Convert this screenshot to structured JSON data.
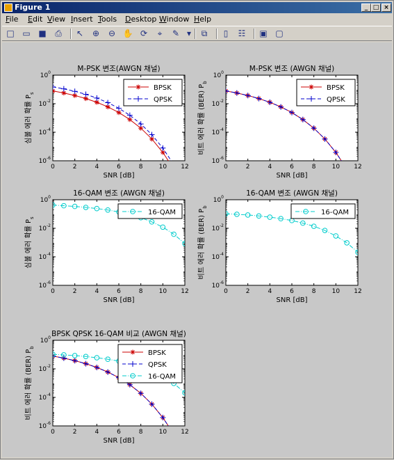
{
  "window": {
    "title": "Figure 1"
  },
  "menu": [
    "File",
    "Edit",
    "View",
    "Insert",
    "Tools",
    "Desktop",
    "Window",
    "Help"
  ],
  "toolbar": [
    {
      "name": "new-figure-icon",
      "glyph": "□"
    },
    {
      "name": "open-file-icon",
      "glyph": "▭"
    },
    {
      "name": "save-icon",
      "glyph": "■"
    },
    {
      "name": "print-icon",
      "glyph": "⎙"
    },
    {
      "sep": true
    },
    {
      "name": "edit-plot-arrow-icon",
      "glyph": "↖"
    },
    {
      "name": "zoom-in-icon",
      "glyph": "⊕"
    },
    {
      "name": "zoom-out-icon",
      "glyph": "⊖"
    },
    {
      "name": "pan-hand-icon",
      "glyph": "✋"
    },
    {
      "name": "rotate-3d-icon",
      "glyph": "⟳"
    },
    {
      "name": "data-cursor-icon",
      "glyph": "⌖"
    },
    {
      "name": "brush-icon",
      "glyph": "✎"
    },
    {
      "name": "brush-dropdown-icon",
      "glyph": "▾"
    },
    {
      "sep": true
    },
    {
      "name": "link-plot-icon",
      "glyph": "⧉"
    },
    {
      "sep": true
    },
    {
      "name": "insert-colorbar-icon",
      "glyph": "▯"
    },
    {
      "name": "insert-legend-icon",
      "glyph": "☷"
    },
    {
      "sep": true
    },
    {
      "name": "hide-plot-tools-icon",
      "glyph": "▣"
    },
    {
      "name": "show-plot-tools-icon",
      "glyph": "▢"
    }
  ],
  "chart_data": [
    {
      "type": "line",
      "title": "M-PSK 변조(AWGN 채널)",
      "xlabel": "SNR [dB]",
      "ylabel": "심볼 에러 확률 P",
      "ylabel_sub": "s",
      "xlim": [
        0,
        12
      ],
      "xticks": [
        0,
        2,
        4,
        6,
        8,
        10,
        12
      ],
      "ylog": true,
      "ylim_exp": [
        -6,
        0
      ],
      "yticks_exp": [
        0,
        -2,
        -4,
        -6
      ],
      "legend": "top-right",
      "series": [
        {
          "name": "BPSK",
          "color": "#cc0000",
          "style": "solid",
          "marker": "star",
          "x": [
            0,
            1,
            2,
            3,
            4,
            5,
            6,
            7,
            8,
            9,
            10,
            11
          ],
          "y": [
            0.0786,
            0.0563,
            0.0375,
            0.0229,
            0.0125,
            0.00595,
            0.00239,
            0.000773,
            0.000191,
            3.36e-05,
            3.87e-06,
            2.6e-07
          ]
        },
        {
          "name": "QPSK",
          "color": "#0000cc",
          "style": "dash",
          "marker": "plus",
          "x": [
            0,
            1,
            2,
            3,
            4,
            5,
            6,
            7,
            8,
            9,
            10,
            11
          ],
          "y": [
            0.151,
            0.11,
            0.0736,
            0.0453,
            0.0248,
            0.0119,
            0.00477,
            0.00155,
            0.000382,
            6.72e-05,
            7.74e-06,
            5.2e-07
          ]
        }
      ]
    },
    {
      "type": "line",
      "title": "M-PSK 변조 (AWGN 채널)",
      "xlabel": "SNR [dB]",
      "ylabel": "비트 에러 확률 (BER) P",
      "ylabel_sub": "b",
      "xlim": [
        0,
        12
      ],
      "xticks": [
        0,
        2,
        4,
        6,
        8,
        10,
        12
      ],
      "ylog": true,
      "ylim_exp": [
        -6,
        0
      ],
      "yticks_exp": [
        0,
        -2,
        -4,
        -6
      ],
      "legend": "top-right",
      "series": [
        {
          "name": "BPSK",
          "color": "#cc0000",
          "style": "solid",
          "marker": "star",
          "x": [
            0,
            1,
            2,
            3,
            4,
            5,
            6,
            7,
            8,
            9,
            10,
            11
          ],
          "y": [
            0.0786,
            0.0563,
            0.0375,
            0.0229,
            0.0125,
            0.00595,
            0.00239,
            0.000773,
            0.000191,
            3.36e-05,
            3.87e-06,
            2.6e-07
          ]
        },
        {
          "name": "QPSK",
          "color": "#0000cc",
          "style": "dash",
          "marker": "plus",
          "x": [
            0,
            1,
            2,
            3,
            4,
            5,
            6,
            7,
            8,
            9,
            10,
            11
          ],
          "y": [
            0.0786,
            0.0563,
            0.0375,
            0.0229,
            0.0125,
            0.00595,
            0.00239,
            0.000773,
            0.000191,
            3.36e-05,
            3.87e-06,
            2.6e-07
          ]
        }
      ]
    },
    {
      "type": "line",
      "title": "16-QAM 변조 (AWGN 채널)",
      "xlabel": "SNR [dB]",
      "ylabel": "심볼 에러 확률 P",
      "ylabel_sub": "s",
      "xlim": [
        0,
        12
      ],
      "xticks": [
        0,
        2,
        4,
        6,
        8,
        10,
        12
      ],
      "ylog": true,
      "ylim_exp": [
        -6,
        0
      ],
      "yticks_exp": [
        0,
        -2,
        -4,
        -6
      ],
      "legend": "top-right",
      "series": [
        {
          "name": "16-QAM",
          "color": "#00cccc",
          "style": "dashdot",
          "marker": "circle",
          "x": [
            0,
            1,
            2,
            3,
            4,
            5,
            6,
            7,
            8,
            9,
            10,
            11,
            12
          ],
          "y": [
            0.42,
            0.38,
            0.34,
            0.29,
            0.24,
            0.19,
            0.14,
            0.092,
            0.055,
            0.028,
            0.012,
            0.0038,
            0.00085
          ]
        }
      ]
    },
    {
      "type": "line",
      "title": "16-QAM 변조 (AWGN 채널)",
      "xlabel": "SNR [dB]",
      "ylabel": "비트 에러 확률 (BER) P",
      "ylabel_sub": "b",
      "xlim": [
        0,
        12
      ],
      "xticks": [
        0,
        2,
        4,
        6,
        8,
        10,
        12
      ],
      "ylog": true,
      "ylim_exp": [
        -6,
        0
      ],
      "yticks_exp": [
        0,
        -2,
        -4,
        -6
      ],
      "legend": "top-right",
      "series": [
        {
          "name": "16-QAM",
          "color": "#00cccc",
          "style": "dashdot",
          "marker": "circle",
          "x": [
            0,
            1,
            2,
            3,
            4,
            5,
            6,
            7,
            8,
            9,
            10,
            11,
            12
          ],
          "y": [
            0.105,
            0.095,
            0.085,
            0.073,
            0.06,
            0.047,
            0.035,
            0.023,
            0.0138,
            0.007,
            0.0029,
            0.00095,
            0.00021
          ]
        }
      ]
    },
    {
      "type": "line",
      "title": "BPSK QPSK 16-QAM 비교 (AWGN 채널)",
      "xlabel": "SNR [dB]",
      "ylabel": "비트 에러 확률 (BER) P",
      "ylabel_sub": "b",
      "xlim": [
        0,
        12
      ],
      "xticks": [
        0,
        2,
        4,
        6,
        8,
        10,
        12
      ],
      "ylog": true,
      "ylim_exp": [
        -6,
        0
      ],
      "yticks_exp": [
        0,
        -2,
        -4,
        -6
      ],
      "legend": "top-right",
      "series": [
        {
          "name": "BPSK",
          "color": "#cc0000",
          "style": "solid",
          "marker": "star",
          "x": [
            0,
            1,
            2,
            3,
            4,
            5,
            6,
            7,
            8,
            9,
            10,
            11
          ],
          "y": [
            0.0786,
            0.0563,
            0.0375,
            0.0229,
            0.0125,
            0.00595,
            0.00239,
            0.000773,
            0.000191,
            3.36e-05,
            3.87e-06,
            2.6e-07
          ]
        },
        {
          "name": "QPSK",
          "color": "#0000cc",
          "style": "dash",
          "marker": "plus",
          "x": [
            0,
            1,
            2,
            3,
            4,
            5,
            6,
            7,
            8,
            9,
            10,
            11
          ],
          "y": [
            0.0786,
            0.0563,
            0.0375,
            0.0229,
            0.0125,
            0.00595,
            0.00239,
            0.000773,
            0.000191,
            3.36e-05,
            3.87e-06,
            2.6e-07
          ]
        },
        {
          "name": "16-QAM",
          "color": "#00cccc",
          "style": "dashdot",
          "marker": "circle",
          "x": [
            0,
            1,
            2,
            3,
            4,
            5,
            6,
            7,
            8,
            9,
            10,
            11,
            12
          ],
          "y": [
            0.105,
            0.095,
            0.085,
            0.073,
            0.06,
            0.047,
            0.035,
            0.023,
            0.0138,
            0.007,
            0.0029,
            0.00095,
            0.00021
          ]
        }
      ]
    }
  ]
}
